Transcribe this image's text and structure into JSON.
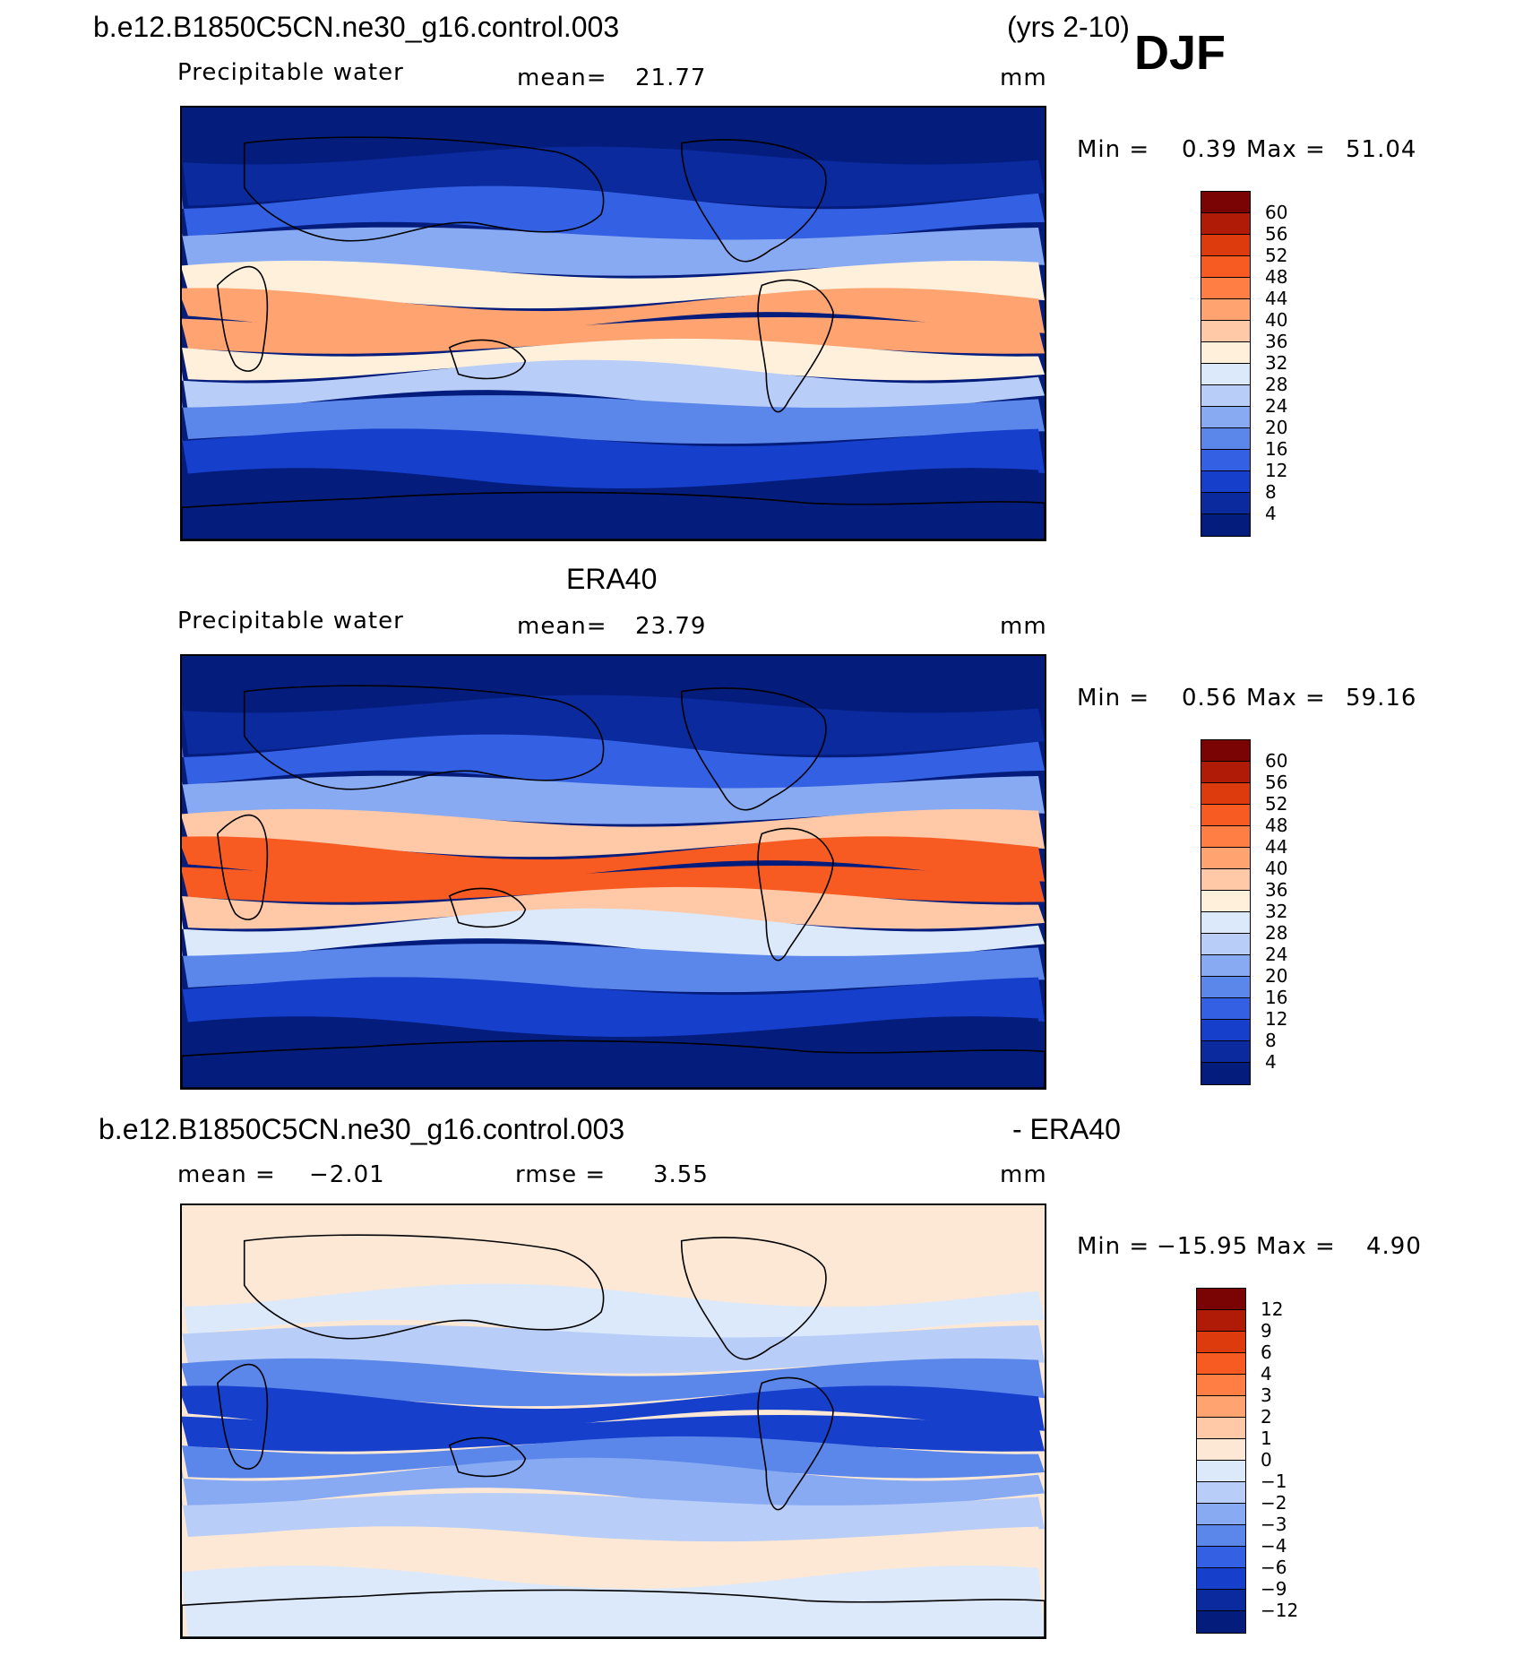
{
  "header": {
    "case_title": "b.e12.B1850C5CN.ne30_g16.control.003",
    "years": "(yrs 2-10)",
    "season": "DJF"
  },
  "chart_data": [
    {
      "type": "heatmap",
      "panel": "model",
      "title": "",
      "variable_label": "Precipitable water",
      "mean_label": "mean=",
      "mean_value": "21.77",
      "units": "mm",
      "min_label": "Min =",
      "min_value": "0.39",
      "max_label": "Max =",
      "max_value": "51.04",
      "colorbar": {
        "levels": [
          "60",
          "56",
          "52",
          "48",
          "44",
          "40",
          "36",
          "32",
          "28",
          "24",
          "20",
          "16",
          "12",
          "8",
          "4"
        ],
        "colors": [
          "#7a0403",
          "#b01b08",
          "#dd3a0d",
          "#f75b22",
          "#ff7e43",
          "#ffa370",
          "#ffc8a6",
          "#fff0dc",
          "#dbe9fb",
          "#b8cdf7",
          "#88aaf2",
          "#5b86ea",
          "#3461e3",
          "#1640cc",
          "#0a2a9e",
          "#041c7c"
        ]
      },
      "field_bands": [
        {
          "lat": 80,
          "value": 3
        },
        {
          "lat": 60,
          "value": 6
        },
        {
          "lat": 45,
          "value": 12
        },
        {
          "lat": 30,
          "value": 22
        },
        {
          "lat": 15,
          "value": 34
        },
        {
          "lat": 5,
          "value": 42
        },
        {
          "lat": -5,
          "value": 40
        },
        {
          "lat": -15,
          "value": 34
        },
        {
          "lat": -25,
          "value": 26
        },
        {
          "lat": -40,
          "value": 16
        },
        {
          "lat": -55,
          "value": 9
        },
        {
          "lat": -75,
          "value": 2
        }
      ]
    },
    {
      "type": "heatmap",
      "panel": "observations",
      "title": "ERA40",
      "variable_label": "Precipitable water",
      "mean_label": "mean=",
      "mean_value": "23.79",
      "units": "mm",
      "min_label": "Min =",
      "min_value": "0.56",
      "max_label": "Max =",
      "max_value": "59.16",
      "colorbar": {
        "levels": [
          "60",
          "56",
          "52",
          "48",
          "44",
          "40",
          "36",
          "32",
          "28",
          "24",
          "20",
          "16",
          "12",
          "8",
          "4"
        ],
        "colors": [
          "#7a0403",
          "#b01b08",
          "#dd3a0d",
          "#f75b22",
          "#ff7e43",
          "#ffa370",
          "#ffc8a6",
          "#fff0dc",
          "#dbe9fb",
          "#b8cdf7",
          "#88aaf2",
          "#5b86ea",
          "#3461e3",
          "#1640cc",
          "#0a2a9e",
          "#041c7c"
        ]
      },
      "field_bands": [
        {
          "lat": 80,
          "value": 3
        },
        {
          "lat": 60,
          "value": 6
        },
        {
          "lat": 45,
          "value": 12
        },
        {
          "lat": 30,
          "value": 22
        },
        {
          "lat": 15,
          "value": 36
        },
        {
          "lat": 5,
          "value": 48
        },
        {
          "lat": -5,
          "value": 50
        },
        {
          "lat": -15,
          "value": 38
        },
        {
          "lat": -25,
          "value": 28
        },
        {
          "lat": -40,
          "value": 17
        },
        {
          "lat": -55,
          "value": 9
        },
        {
          "lat": -75,
          "value": 2
        }
      ]
    },
    {
      "type": "heatmap",
      "panel": "difference",
      "title_left": "b.e12.B1850C5CN.ne30_g16.control.003",
      "title_right": "- ERA40",
      "mean_label": "mean =",
      "mean_value": "−2.01",
      "rmse_label": "rmse =",
      "rmse_value": "3.55",
      "units": "mm",
      "min_label": "Min =",
      "min_value": "−15.95",
      "max_label": "Max =",
      "max_value": "4.90",
      "colorbar": {
        "levels": [
          "12",
          "9",
          "6",
          "4",
          "3",
          "2",
          "1",
          "0",
          "−1",
          "−2",
          "−3",
          "−4",
          "−6",
          "−9",
          "−12"
        ],
        "colors": [
          "#7a0403",
          "#b01b08",
          "#dd3a0d",
          "#f75b22",
          "#ff7e43",
          "#ffa370",
          "#ffc8a6",
          "#fde8d6",
          "#dbe9fb",
          "#b8cdf7",
          "#88aaf2",
          "#5b86ea",
          "#3461e3",
          "#1640cc",
          "#0a2a9e",
          "#041c7c"
        ]
      },
      "field_bands": [
        {
          "lat": 80,
          "value": 0.5
        },
        {
          "lat": 60,
          "value": 0.3
        },
        {
          "lat": 45,
          "value": -0.5
        },
        {
          "lat": 30,
          "value": -2
        },
        {
          "lat": 15,
          "value": -4
        },
        {
          "lat": 5,
          "value": -7
        },
        {
          "lat": -5,
          "value": -8
        },
        {
          "lat": -15,
          "value": -4
        },
        {
          "lat": -25,
          "value": -3
        },
        {
          "lat": -40,
          "value": -1.5
        },
        {
          "lat": -55,
          "value": 0.3
        },
        {
          "lat": -75,
          "value": -0.5
        }
      ]
    }
  ]
}
